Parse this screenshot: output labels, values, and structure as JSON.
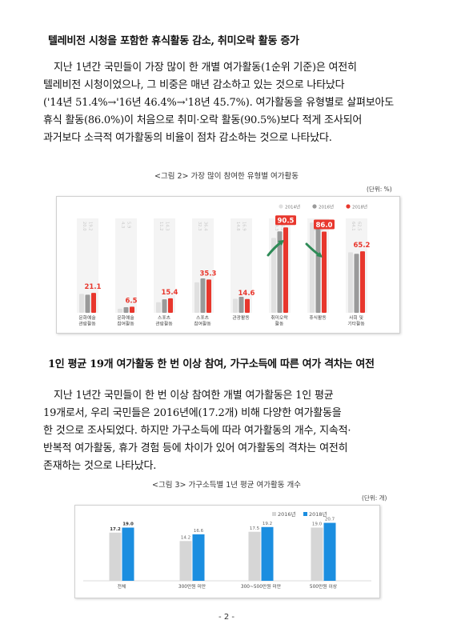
{
  "section1": {
    "heading": "텔레비전 시청을 포함한 휴식활동 감소, 취미오락 활동 증가",
    "lines": [
      "지난 1년간 국민들이 가장 많이 한 개별 여가활동(1순위 기준)은 여전히",
      "텔레비전 시청이었으나, 그 비중은 매년 감소하고 있는 것으로 나타났다",
      "('14년 51.4%→'16년 46.4%→'18년 45.7%). 여가활동을 유형별로 살펴보아도",
      "휴식 활동(86.0%)이 처음으로 취미·오락 활동(90.5%)보다 적게 조사되어",
      "과거보다 소극적 여가활동의 비율이 점차 감소하는 것으로 나타났다."
    ],
    "caption": "<그림 2> 가장 많이 참여한 유형별 여가활동",
    "unit": "(단위: %)"
  },
  "section2": {
    "heading": "1인 평균 19개 여가활동 한 번 이상 참여, 가구소득에 따른 여가 격차는 여전",
    "lines": [
      "지난 1년간 국민들이 한 번 이상 참여한 개별 여가활동은 1인 평균",
      "19개로서, 우리 국민들은 2016년에(17.2개) 비해 다양한 여가활동을",
      "한 것으로 조사되었다. 하지만 가구소득에 따라 여가활동의 개수, 지속적·",
      "반복적 여가활동, 휴가 경험 등에 차이가 있어 여가활동의 격차는 여전히",
      "존재하는 것으로 나타났다."
    ],
    "caption": "<그림 3> 가구소득별 1년 평균 여가활동 개수",
    "unit": "(단위: 개)"
  },
  "page_number": "- 2 -",
  "chart_data": [
    {
      "type": "bar",
      "categories": [
        [
          "문화예술",
          "관람활동"
        ],
        [
          "문화예술",
          "참여활동"
        ],
        [
          "스포츠",
          "관람활동"
        ],
        [
          "스포츠",
          "참여활동"
        ],
        [
          "관광활동"
        ],
        [
          "취미오락",
          "활동"
        ],
        [
          "휴식활동"
        ],
        [
          "사회 및",
          "기타활동"
        ]
      ],
      "series": [
        {
          "name": "2014년",
          "values": [
            20.0,
            4.3,
            11.2,
            32.3,
            14.8,
            79.3,
            95.5,
            64.1
          ],
          "labels": [
            "20.0",
            "4.3",
            "11.2",
            "32.3",
            "14.8",
            "79.3",
            "95.5",
            "64.1"
          ]
        },
        {
          "name": "2016년",
          "values": [
            19.2,
            5.9,
            14.3,
            36.4,
            16.9,
            86.2,
            90.9,
            62.5
          ],
          "labels": [
            "19.2",
            "5.9",
            "14.3",
            "36.4",
            "16.9",
            "86.2",
            "90.9",
            "62.5"
          ]
        },
        {
          "name": "2018년",
          "values": [
            21.1,
            6.5,
            15.4,
            35.3,
            14.6,
            90.5,
            86.0,
            65.2
          ],
          "labels": [
            "21.1",
            "6.5",
            "15.4",
            "35.3",
            "14.6",
            "90.5",
            "86.0",
            "65.2"
          ]
        }
      ],
      "ylim": [
        0,
        100
      ],
      "highlight_series": "2018년",
      "boxed_labels": [
        5,
        6
      ],
      "trend_arrows": [
        {
          "category": 5,
          "direction": "up"
        },
        {
          "category": 6,
          "direction": "down"
        }
      ],
      "legend_position": "top-right",
      "colors": {
        "2014년": "#e0e0e0",
        "2016년": "#9a9a9a",
        "2018년": "#e8372d"
      }
    },
    {
      "type": "bar",
      "categories": [
        [
          "전체"
        ],
        [
          "300만원 미만"
        ],
        [
          "300~500만원 미만"
        ],
        [
          "500만원 이상"
        ]
      ],
      "series": [
        {
          "name": "2016년",
          "values": [
            17.2,
            14.2,
            17.5,
            19.0
          ],
          "labels": [
            "17.2",
            "14.2",
            "17.5",
            "19.0"
          ]
        },
        {
          "name": "2018년",
          "values": [
            19.0,
            16.6,
            19.2,
            20.7
          ],
          "labels": [
            "19.0",
            "16.6",
            "19.2",
            "20.7"
          ]
        }
      ],
      "ylim": [
        0,
        24
      ],
      "legend_position": "top-right",
      "colors": {
        "2016년": "#d6d6d6",
        "2018년": "#1b8ee0"
      }
    }
  ]
}
